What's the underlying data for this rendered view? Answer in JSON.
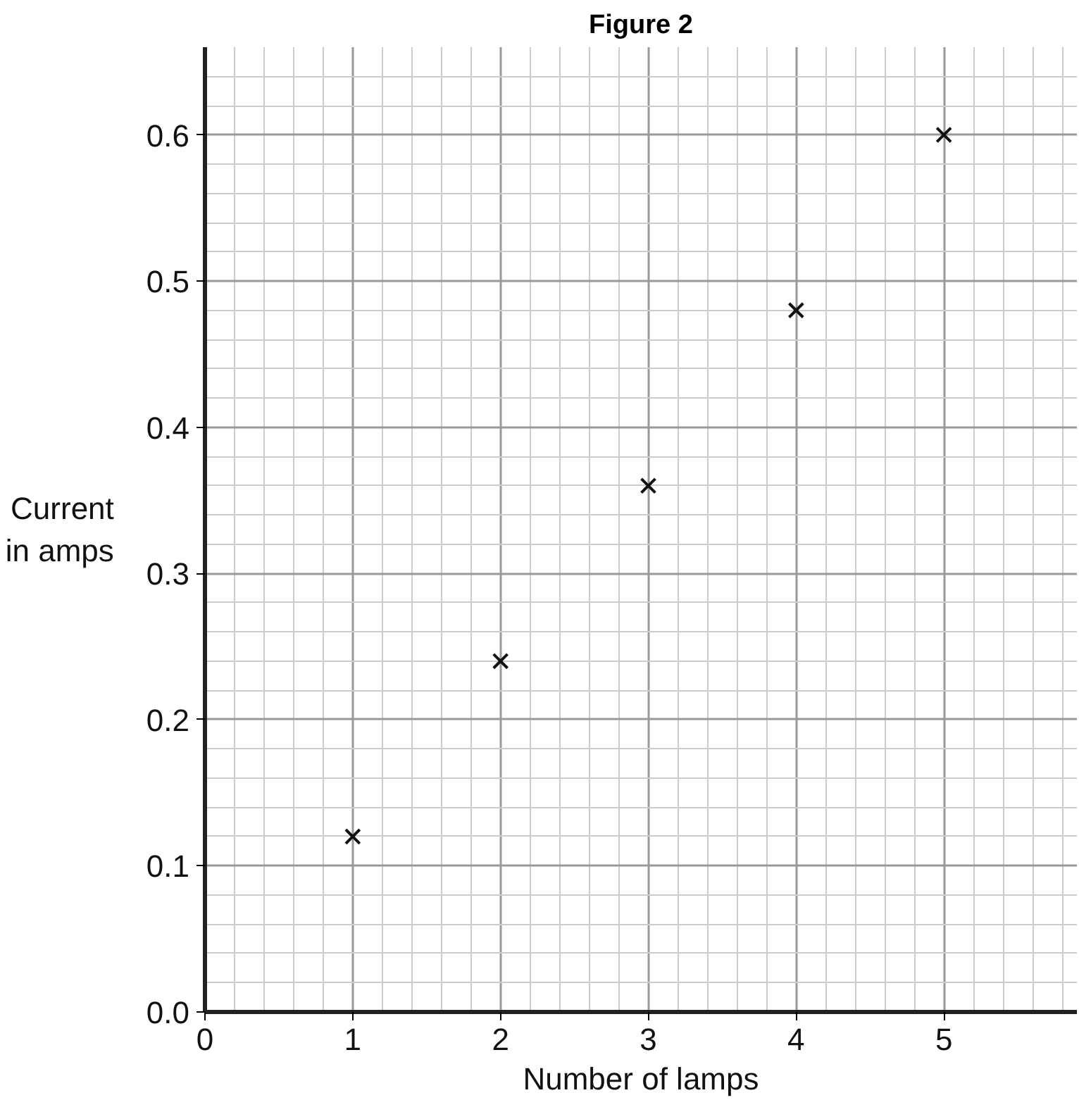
{
  "chart_data": {
    "type": "scatter",
    "title": "Figure 2",
    "xlabel": "Number of lamps",
    "ylabel": "Current\nin amps",
    "x": [
      1,
      2,
      3,
      4,
      5
    ],
    "values": [
      0.12,
      0.24,
      0.36,
      0.48,
      0.6
    ],
    "color": "#111111",
    "marker": "cross",
    "grid": true,
    "xlim": [
      0,
      5.9
    ],
    "ylim": [
      0,
      0.66
    ],
    "xticks": [
      0,
      1,
      2,
      3,
      4,
      5
    ],
    "yticks": [
      {
        "value": 0,
        "label": "0.0"
      },
      0.1,
      0.2,
      0.3,
      0.4,
      0.5,
      0.6
    ]
  }
}
